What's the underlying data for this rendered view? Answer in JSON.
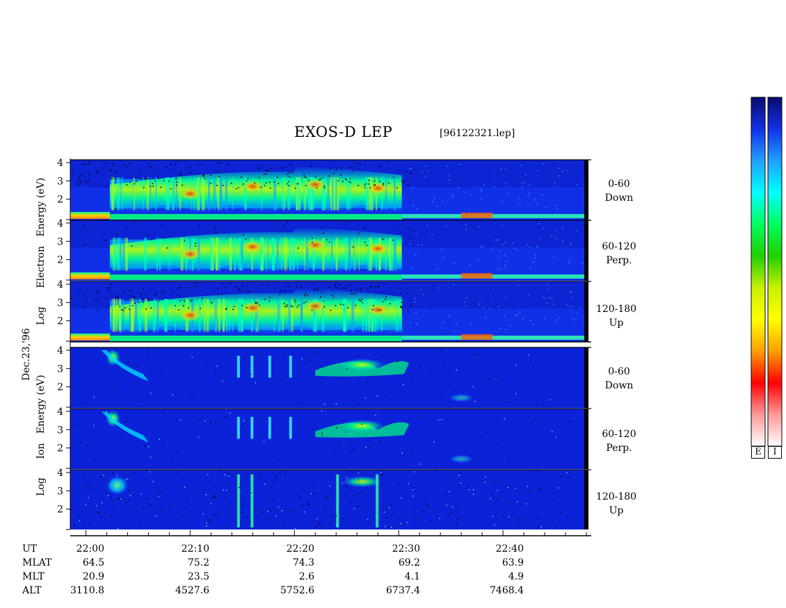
{
  "title": "EXOS-D LEP",
  "filename": "[96122321.lep]",
  "date_label": "Dec.23,'96",
  "electron_ylabel": [
    "Log",
    "Electron",
    "Energy",
    "(eV)"
  ],
  "ion_ylabel": [
    "Log",
    "Ion",
    "Energy",
    "(eV)"
  ],
  "panel_labels": [
    {
      "range": "0-60",
      "dir": "Down"
    },
    {
      "range": "60-120",
      "dir": "Perp."
    },
    {
      "range": "120-180",
      "dir": "Up"
    },
    {
      "range": "0-60",
      "dir": "Down"
    },
    {
      "range": "60-120",
      "dir": "Perp."
    },
    {
      "range": "120-180",
      "dir": "Up"
    }
  ],
  "colorbar_labels": [
    "E",
    "I"
  ],
  "colorbar_colors": [
    "#0a0a6e",
    "#1030e8",
    "#20a0ff",
    "#00ffff",
    "#00ff60",
    "#20d000",
    "#c8f000",
    "#ffff00",
    "#ffa000",
    "#ff0000",
    "#ff9898",
    "#ffffff"
  ],
  "chart_data": {
    "type": "heatmap",
    "title": "EXOS-D LEP",
    "ylim": [
      1,
      4
    ],
    "yticks": [
      "2",
      "3",
      "4"
    ],
    "xticks": [
      "22:00",
      "22:10",
      "22:20",
      "22:30",
      "22:40"
    ],
    "panels": [
      {
        "species": "Electron",
        "pitch_angle": "0-60",
        "direction": "Down"
      },
      {
        "species": "Electron",
        "pitch_angle": "60-120",
        "direction": "Perp."
      },
      {
        "species": "Electron",
        "pitch_angle": "120-180",
        "direction": "Up"
      },
      {
        "species": "Ion",
        "pitch_angle": "0-60",
        "direction": "Down"
      },
      {
        "species": "Ion",
        "pitch_angle": "60-120",
        "direction": "Perp."
      },
      {
        "species": "Ion",
        "pitch_angle": "120-180",
        "direction": "Up"
      }
    ],
    "ephemeris": {
      "row_labels": [
        "UT",
        "MLAT",
        "MLT",
        "ALT"
      ],
      "UT": [
        "22:00",
        "22:10",
        "22:20",
        "22:30",
        "22:40"
      ],
      "MLAT": [
        "64.5",
        "75.2",
        "74.3",
        "69.2",
        "63.9"
      ],
      "MLT": [
        "20.9",
        "23.5",
        "2.6",
        "4.1",
        "4.9"
      ],
      "ALT": [
        "3110.8",
        "4527.6",
        "5752.6",
        "6737.4",
        "7468.4"
      ]
    }
  }
}
